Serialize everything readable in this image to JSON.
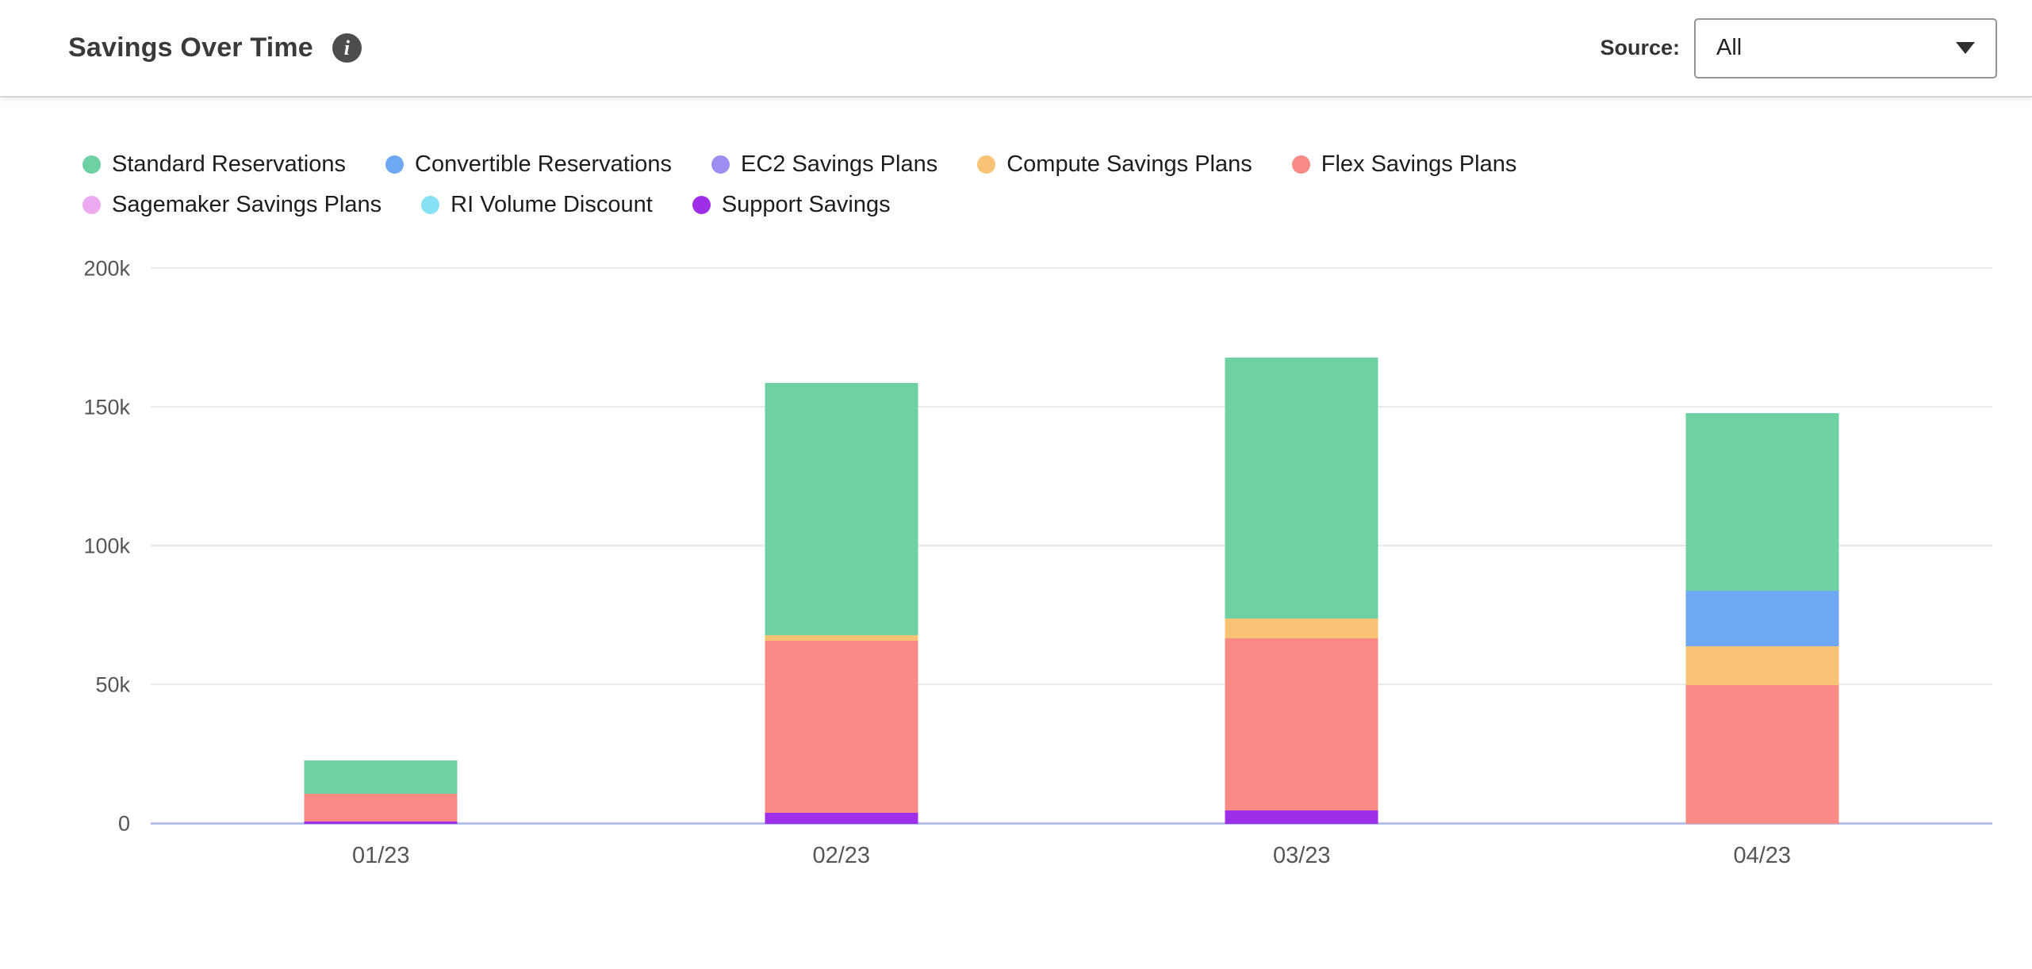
{
  "header": {
    "title": "Savings Over Time",
    "info_icon_glyph": "i",
    "source_label": "Source:",
    "source_value": "All"
  },
  "chart_data": {
    "type": "bar",
    "stacked": true,
    "title": "Savings Over Time",
    "xlabel": "",
    "ylabel": "",
    "grid": true,
    "legend_position": "top",
    "categories": [
      "01/23",
      "02/23",
      "03/23",
      "04/23"
    ],
    "series": [
      {
        "name": "Standard Reservations",
        "color": "#6dd1a4",
        "values": [
          12000,
          91000,
          94000,
          64000
        ]
      },
      {
        "name": "Convertible Reservations",
        "color": "#6fa8f2",
        "values": [
          0,
          0,
          0,
          20000
        ]
      },
      {
        "name": "EC2 Savings Plans",
        "color": "#9c8df2",
        "values": [
          0,
          0,
          0,
          0
        ]
      },
      {
        "name": "Compute Savings Plans",
        "color": "#f8c375",
        "values": [
          0,
          2000,
          7000,
          14000
        ]
      },
      {
        "name": "Flex Savings Plans",
        "color": "#fa8a85",
        "values": [
          10000,
          62000,
          62000,
          50000
        ]
      },
      {
        "name": "Sagemaker Savings Plans",
        "color": "#eeaaf1",
        "values": [
          0,
          0,
          0,
          0
        ]
      },
      {
        "name": "RI Volume Discount",
        "color": "#86e1f4",
        "values": [
          0,
          0,
          0,
          0
        ]
      },
      {
        "name": "Support Savings",
        "color": "#9d2fe8",
        "values": [
          1000,
          4000,
          5000,
          0
        ]
      }
    ],
    "stack_order": [
      "Support Savings",
      "Flex Savings Plans",
      "Compute Savings Plans",
      "Convertible Reservations",
      "EC2 Savings Plans",
      "Sagemaker Savings Plans",
      "RI Volume Discount",
      "Standard Reservations"
    ],
    "ylim": [
      0,
      200000
    ],
    "yticks": [
      {
        "label": "0",
        "value": 0
      },
      {
        "label": "50k",
        "value": 50000
      },
      {
        "label": "100k",
        "value": 100000
      },
      {
        "label": "150k",
        "value": 150000
      },
      {
        "label": "200k",
        "value": 200000
      }
    ]
  }
}
